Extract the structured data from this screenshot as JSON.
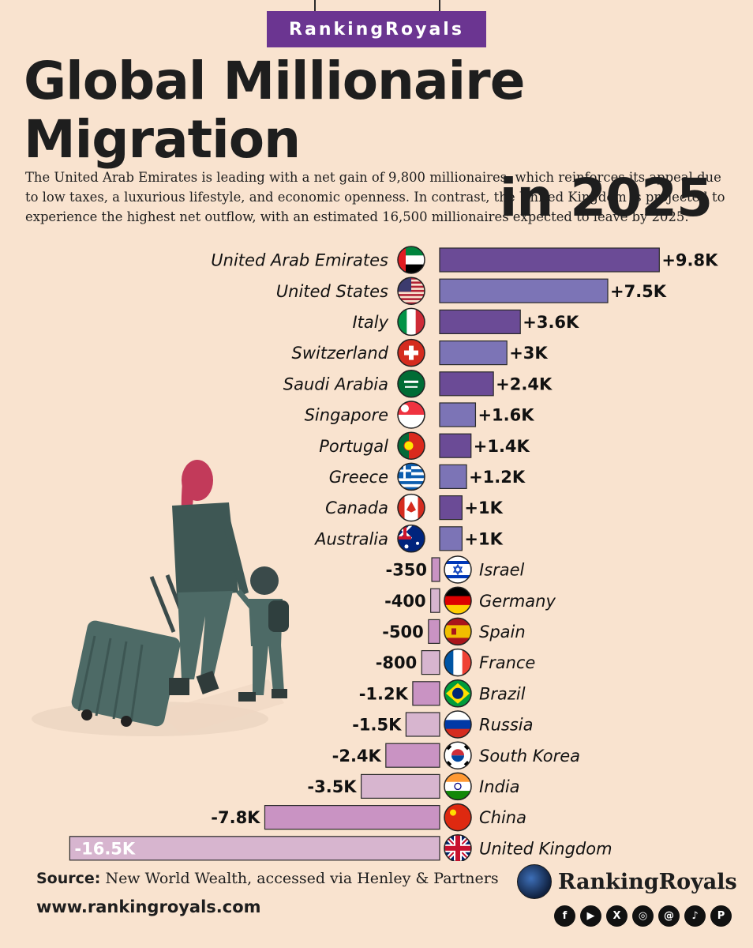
{
  "brand_tab": "RankingRoyals",
  "title_line1": "Global Millionaire Migration",
  "title_line2": "in 2025",
  "subtitle": "The United Arab Emirates is leading with a net gain of 9,800 millionaires, which reinforces its appeal due to low taxes, a luxurious lifestyle, and economic openness. In contrast, the United Kingdom is projected to experience the highest net outflow, with an estimated 16,500 millionaires expected to leave by 2025.",
  "source_label": "Source:",
  "source_text": "New World Wealth, accessed via Henley & Partners",
  "website": "www.rankingroyals.com",
  "logo_text": "RankingRoyals",
  "socials": [
    {
      "icon": "facebook-icon",
      "glyph": "f"
    },
    {
      "icon": "youtube-icon",
      "glyph": "▶"
    },
    {
      "icon": "x-icon",
      "glyph": "X"
    },
    {
      "icon": "instagram-icon",
      "glyph": "◎"
    },
    {
      "icon": "threads-icon",
      "glyph": "@"
    },
    {
      "icon": "tiktok-icon",
      "glyph": "♪"
    },
    {
      "icon": "pinterest-icon",
      "glyph": "P"
    }
  ],
  "colors": {
    "background": "#f9e3cf",
    "positive_dark": "#6b4b96",
    "positive_light": "#7c74b6",
    "negative_dark": "#c993c3",
    "negative_light": "#d7b5cf",
    "brand": "#6b3591"
  },
  "chart_data": {
    "type": "bar",
    "orientation": "horizontal",
    "categories": [
      "United Arab Emirates",
      "United States",
      "Italy",
      "Switzerland",
      "Saudi Arabia",
      "Singapore",
      "Portugal",
      "Greece",
      "Canada",
      "Australia",
      "Israel",
      "Germany",
      "Spain",
      "France",
      "Brazil",
      "Russia",
      "South Korea",
      "India",
      "China",
      "United Kingdom"
    ],
    "values": [
      9800,
      7500,
      3600,
      3000,
      2400,
      1600,
      1400,
      1200,
      1000,
      1000,
      -350,
      -400,
      -500,
      -800,
      -1200,
      -1500,
      -2400,
      -3500,
      -7800,
      -16500
    ],
    "labels": [
      "+9.8K",
      "+7.5K",
      "+3.6K",
      "+3K",
      "+2.4K",
      "+1.6K",
      "+1.4K",
      "+1.2K",
      "+1K",
      "+1K",
      "-350",
      "-400",
      "-500",
      "-800",
      "-1.2K",
      "-1.5K",
      "-2.4K",
      "-3.5K",
      "-7.8K",
      "-16.5K"
    ],
    "flags": [
      "uae",
      "usa",
      "italy",
      "switzerland",
      "saudi",
      "singapore",
      "portugal",
      "greece",
      "canada",
      "australia",
      "israel",
      "germany",
      "spain",
      "france",
      "brazil",
      "russia",
      "korea",
      "india",
      "china",
      "uk"
    ]
  }
}
